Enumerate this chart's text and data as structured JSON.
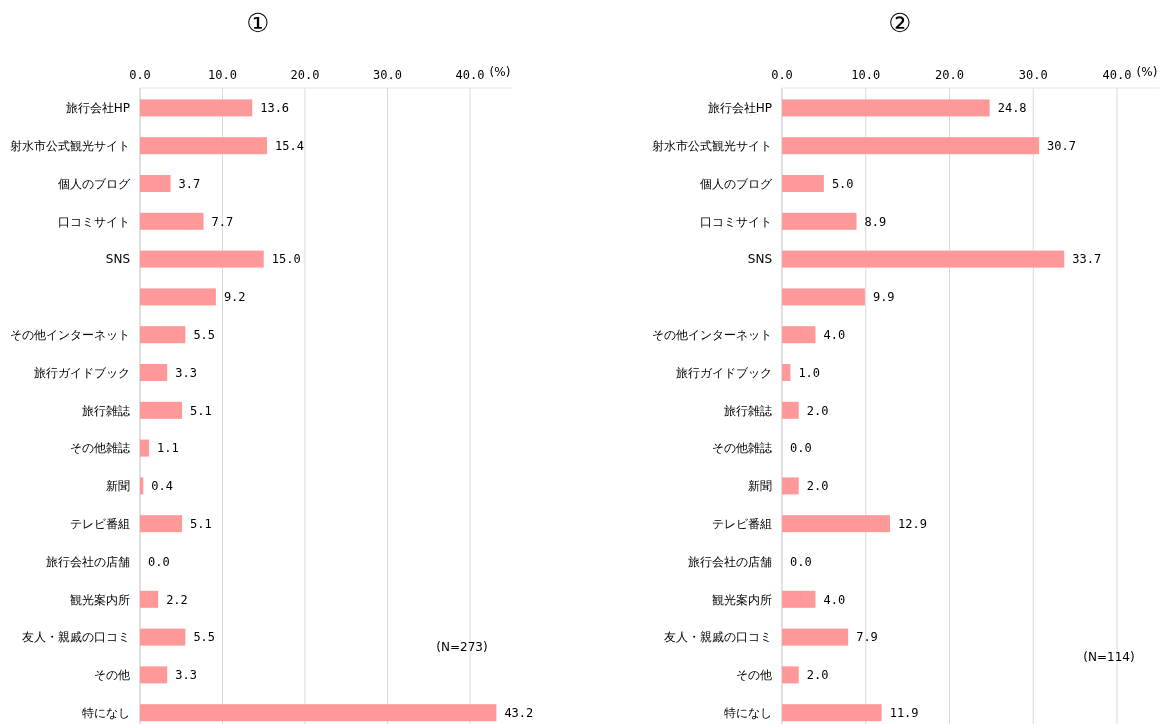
{
  "chart_data": [
    {
      "type": "bar",
      "orientation": "horizontal",
      "title": "①",
      "xlabel": "(%)",
      "categories": [
        "旅行会社HP",
        "射水市公式観光サイト",
        "個人のブログ",
        "口コミサイト",
        "SNS",
        null,
        "その他インターネット",
        "旅行ガイドブック",
        "旅行雑誌",
        "その他雑誌",
        "新聞",
        "テレビ番組",
        "旅行会社の店舗",
        "観光案内所",
        "友人・親戚の口コミ",
        "その他",
        "特になし"
      ],
      "values": [
        13.6,
        15.4,
        3.7,
        7.7,
        15.0,
        9.2,
        5.5,
        3.3,
        5.1,
        1.1,
        0.4,
        5.1,
        0.0,
        2.2,
        5.5,
        3.3,
        43.2
      ],
      "value_labels": [
        "13.6",
        "15.4",
        "3.7",
        "7.7",
        "15.0",
        "9.2",
        "5.5",
        "3.3",
        "5.1",
        "1.1",
        "0.4",
        "5.1",
        "0.0",
        "2.2",
        "5.5",
        "3.3",
        "43.2"
      ],
      "color": "#ff9999",
      "xlim": [
        0,
        45
      ],
      "xticks": [
        {
          "value": 0,
          "label": "0.0"
        },
        {
          "value": 10,
          "label": "10.0"
        },
        {
          "value": 20,
          "label": "20.0"
        },
        {
          "value": 30,
          "label": "30.0"
        },
        {
          "value": 40,
          "label": "40.0"
        }
      ],
      "grid": "x",
      "annotations": [
        "(N=273)"
      ]
    },
    {
      "type": "bar",
      "orientation": "horizontal",
      "title": "②",
      "xlabel": "(%)",
      "categories": [
        "旅行会社HP",
        "射水市公式観光サイト",
        "個人のブログ",
        "口コミサイト",
        "SNS",
        null,
        "その他インターネット",
        "旅行ガイドブック",
        "旅行雑誌",
        "その他雑誌",
        "新聞",
        "テレビ番組",
        "旅行会社の店舗",
        "観光案内所",
        "友人・親戚の口コミ",
        "その他",
        "特になし"
      ],
      "values": [
        24.8,
        30.7,
        5.0,
        8.9,
        33.7,
        9.9,
        4.0,
        1.0,
        2.0,
        0.0,
        2.0,
        12.9,
        0.0,
        4.0,
        7.9,
        2.0,
        11.9
      ],
      "value_labels": [
        "24.8",
        "30.7",
        "5.0",
        "8.9",
        "33.7",
        "9.9",
        "4.0",
        "1.0",
        "2.0",
        "0.0",
        "2.0",
        "12.9",
        "0.0",
        "4.0",
        "7.9",
        "2.0",
        "11.9"
      ],
      "color": "#ff9999",
      "xlim": [
        0,
        45
      ],
      "xticks": [
        {
          "value": 0,
          "label": "0.0"
        },
        {
          "value": 10,
          "label": "10.0"
        },
        {
          "value": 20,
          "label": "20.0"
        },
        {
          "value": 30,
          "label": "30.0"
        },
        {
          "value": 40,
          "label": "40.0"
        }
      ],
      "grid": "x",
      "annotations": [
        "(N=114)"
      ]
    }
  ]
}
